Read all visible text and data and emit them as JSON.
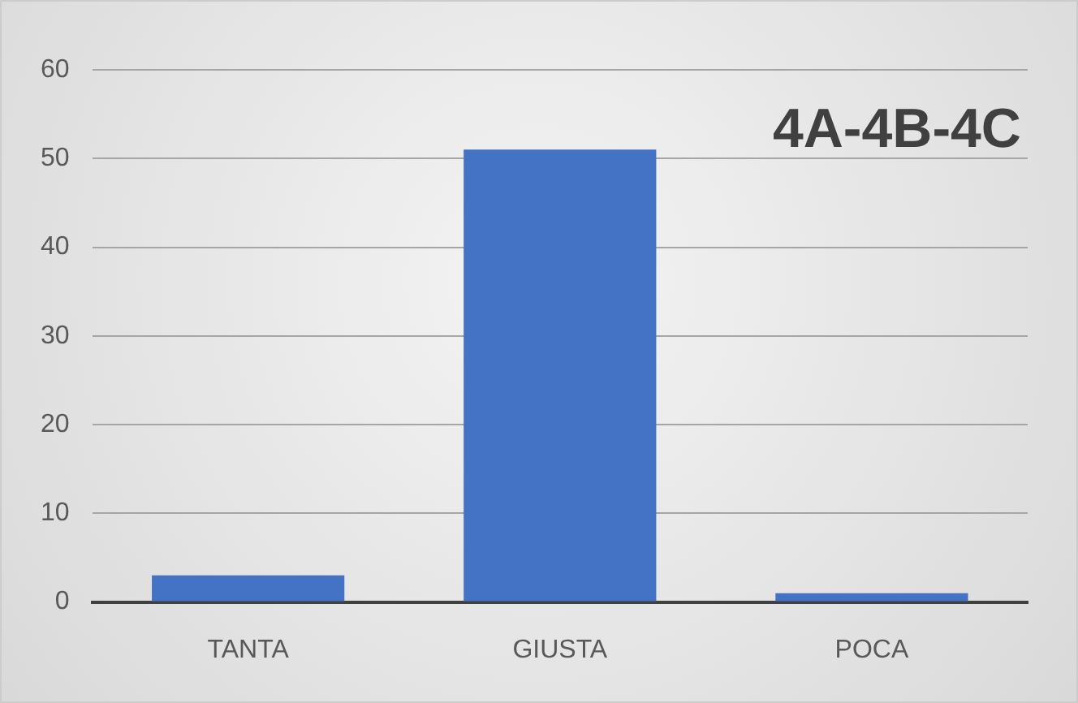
{
  "chart_data": {
    "type": "bar",
    "title": "4A-4B-4C",
    "categories": [
      "TANTA",
      "GIUSTA",
      "POCA"
    ],
    "values": [
      3,
      51,
      1
    ],
    "color": "#4472c4",
    "ylim": [
      0,
      60
    ],
    "yticks": [
      0,
      10,
      20,
      30,
      40,
      50,
      60
    ],
    "grid": "y"
  }
}
